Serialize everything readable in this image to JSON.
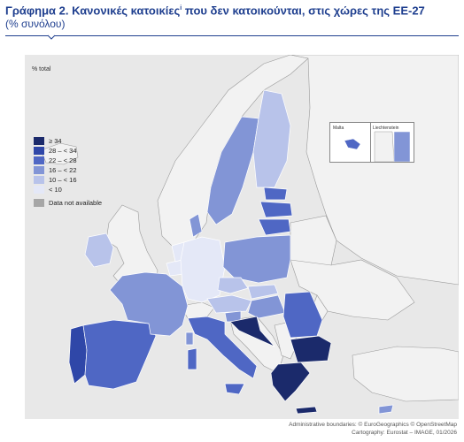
{
  "header": {
    "title_main": "Γράφημα 2. Κανονικές κατοικίες",
    "title_sup": "i",
    "title_rest": " που δεν κατοικούνται, στις χώρες της ΕΕ-27",
    "subtitle": "(% συνόλου)"
  },
  "map": {
    "unit_label": "% total",
    "legend": [
      {
        "label": "≥ 34",
        "color": "#1b2a6b"
      },
      {
        "label": "28 – < 34",
        "color": "#2f47a8"
      },
      {
        "label": "22 – < 28",
        "color": "#4f67c4"
      },
      {
        "label": "16 – < 22",
        "color": "#8295d6"
      },
      {
        "label": "10 – < 16",
        "color": "#b8c3ea"
      },
      {
        "label": "< 10",
        "color": "#e4e8f7"
      }
    ],
    "na_label": "Data not available",
    "na_color": "#a6a6a6",
    "insets": {
      "malta": "Malta",
      "liechtenstein": "Liechtenstein"
    }
  },
  "footer": {
    "line1": "Administrative boundaries: © EuroGeographics © OpenStreetMap",
    "line2": "Cartography: Eurostat – IMAGE, 01/2026"
  }
}
